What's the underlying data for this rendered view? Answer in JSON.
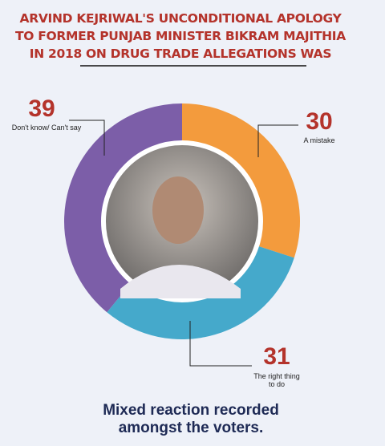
{
  "chart_data": {
    "type": "donut",
    "title": [
      "ARVIND KEJRIWAL'S UNCONDITIONAL APOLOGY",
      "TO FORMER PUNJAB MINISTER BIKRAM MAJITHIA",
      "IN 2018 ON DRUG TRADE ALLEGATIONS WAS"
    ],
    "categories": [
      "A mistake",
      "The right thing to do",
      "Don't know/ Can't say"
    ],
    "values": [
      30,
      31,
      39
    ],
    "colors": [
      "#f39b3d",
      "#45a9cb",
      "#7c5ea8"
    ],
    "footer": [
      "Mixed reaction recorded",
      "amongst the voters."
    ]
  }
}
